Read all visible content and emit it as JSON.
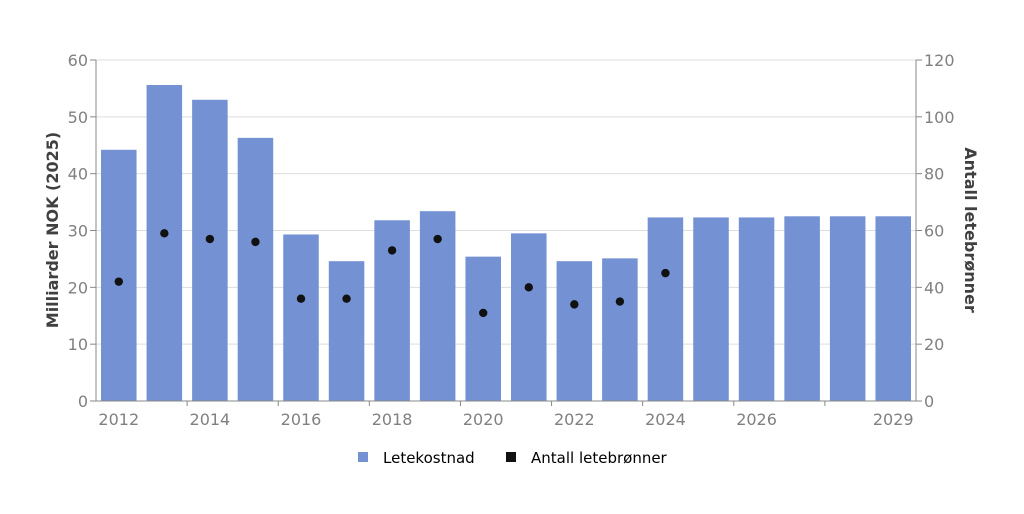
{
  "chart_data": {
    "type": "bar",
    "x": [
      2012,
      2013,
      2014,
      2015,
      2016,
      2017,
      2018,
      2019,
      2020,
      2021,
      2022,
      2023,
      2024,
      2025,
      2026,
      2027,
      2028,
      2029
    ],
    "x_tick_labels": [
      "2012",
      "2014",
      "2016",
      "2018",
      "2020",
      "2022",
      "2024",
      "2026",
      "2029"
    ],
    "series": [
      {
        "name": "Letekostnad",
        "type": "bar",
        "axis": "left",
        "color": "#7492d3",
        "values": [
          44.2,
          55.6,
          53.0,
          46.3,
          29.3,
          24.6,
          31.8,
          33.4,
          25.4,
          29.5,
          24.6,
          25.1,
          32.3,
          32.3,
          32.3,
          32.5,
          32.5,
          32.5
        ]
      },
      {
        "name": "Antall letebrønner",
        "type": "scatter",
        "axis": "right",
        "color": "#111111",
        "values": [
          42,
          59,
          57,
          56,
          36,
          36,
          53,
          57,
          31,
          40,
          34,
          35,
          45,
          null,
          null,
          null,
          null,
          null
        ]
      }
    ],
    "ylabel": "Milliarder NOK (2025)",
    "y2label": "Antall letebrønner",
    "ylim": [
      0,
      60
    ],
    "y2lim": [
      0,
      120
    ],
    "yticks": [
      "0",
      "10",
      "20",
      "30",
      "40",
      "50",
      "60"
    ],
    "y2ticks": [
      "0",
      "20",
      "40",
      "60",
      "80",
      "100",
      "120"
    ],
    "grid": true,
    "legend": "bottom"
  }
}
